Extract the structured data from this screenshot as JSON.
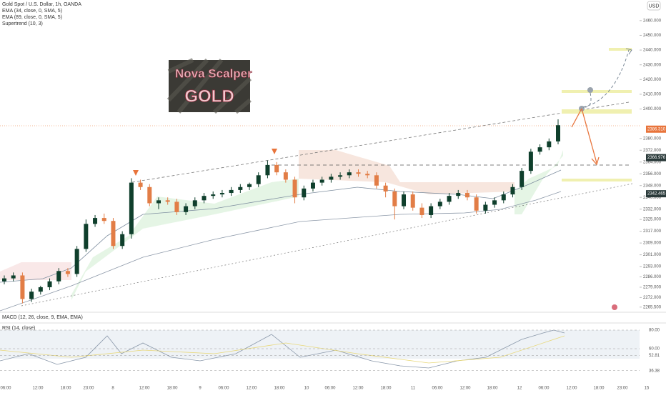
{
  "chart_data": {
    "type": "candlestick",
    "title": "Gold Spot / U.S. Dollar, 1h, OANDA",
    "indicators": [
      "EMA (34, close, 0, SMA, 5)",
      "EMA (89, close, 0, SMA, 5)",
      "Supertrend (10, 3)"
    ],
    "currency": "USD",
    "logo": {
      "line1": "Nova Scalper",
      "line2": "GOLD"
    },
    "up_color": "#0f3f2c",
    "down_color": "#e27d46",
    "open": [
      2283,
      2285,
      2287,
      2271,
      2276,
      2279,
      2283,
      2290,
      2288,
      2305,
      2322,
      2326,
      2324,
      2307,
      2315,
      2350,
      2347,
      2336,
      2338,
      2337,
      2330,
      2334,
      2338,
      2341,
      2342,
      2343,
      2345,
      2347,
      2349,
      2355,
      2362,
      2357,
      2352,
      2340,
      2346,
      2350,
      2352,
      2354,
      2355,
      2357,
      2356,
      2355,
      2348,
      2344,
      2334,
      2342,
      2333,
      2328,
      2334,
      2337,
      2341,
      2343,
      2340,
      2331,
      2335,
      2338,
      2342,
      2347,
      2358,
      2371,
      2374,
      2378
    ],
    "high": [
      2287,
      2289,
      2289,
      2278,
      2280,
      2285,
      2292,
      2292,
      2307,
      2325,
      2328,
      2329,
      2326,
      2317,
      2353,
      2352,
      2349,
      2340,
      2340,
      2339,
      2336,
      2340,
      2343,
      2344,
      2345,
      2347,
      2349,
      2350,
      2357,
      2365,
      2364,
      2359,
      2354,
      2348,
      2352,
      2354,
      2356,
      2357,
      2359,
      2359,
      2358,
      2357,
      2350,
      2346,
      2344,
      2344,
      2336,
      2336,
      2339,
      2343,
      2345,
      2345,
      2342,
      2337,
      2340,
      2344,
      2349,
      2360,
      2373,
      2376,
      2380,
      2393
    ],
    "low": [
      2281,
      2283,
      2268,
      2269,
      2274,
      2277,
      2281,
      2286,
      2286,
      2303,
      2320,
      2322,
      2305,
      2305,
      2312,
      2345,
      2334,
      2332,
      2335,
      2328,
      2328,
      2332,
      2336,
      2339,
      2340,
      2341,
      2343,
      2345,
      2347,
      2353,
      2355,
      2350,
      2336,
      2338,
      2344,
      2348,
      2350,
      2352,
      2353,
      2354,
      2353,
      2346,
      2340,
      2325,
      2332,
      2331,
      2326,
      2326,
      2332,
      2335,
      2339,
      2338,
      2329,
      2329,
      2333,
      2336,
      2340,
      2345,
      2356,
      2369,
      2372,
      2376
    ],
    "close": [
      2285,
      2287,
      2271,
      2276,
      2279,
      2283,
      2290,
      2288,
      2305,
      2322,
      2326,
      2324,
      2307,
      2315,
      2350,
      2347,
      2336,
      2338,
      2337,
      2330,
      2334,
      2338,
      2341,
      2342,
      2343,
      2345,
      2347,
      2349,
      2355,
      2362,
      2357,
      2352,
      2340,
      2346,
      2350,
      2352,
      2354,
      2355,
      2357,
      2356,
      2355,
      2348,
      2344,
      2334,
      2342,
      2333,
      2328,
      2334,
      2337,
      2341,
      2343,
      2340,
      2331,
      2335,
      2338,
      2342,
      2347,
      2358,
      2371,
      2374,
      2378,
      2389
    ],
    "ylim": [
      2262,
      2474
    ],
    "yticks": [
      {
        "value": 2265.5,
        "label": "2265.500"
      },
      {
        "value": 2272,
        "label": "2272.000"
      },
      {
        "value": 2279,
        "label": "2279.000"
      },
      {
        "value": 2286,
        "label": "2286.000"
      },
      {
        "value": 2293,
        "label": "2293.000"
      },
      {
        "value": 2301,
        "label": "2301.000"
      },
      {
        "value": 2309,
        "label": "2309.000"
      },
      {
        "value": 2317,
        "label": "2317.000"
      },
      {
        "value": 2325,
        "label": "2325.000"
      },
      {
        "value": 2332,
        "label": "2332.000"
      },
      {
        "value": 2340,
        "label": "2340.000"
      },
      {
        "value": 2348,
        "label": "2348.000"
      },
      {
        "value": 2356,
        "label": "2356.000"
      },
      {
        "value": 2364,
        "label": "2364.000"
      },
      {
        "value": 2372,
        "label": "2372.000"
      },
      {
        "value": 2380,
        "label": "2380.000"
      },
      {
        "value": 2400,
        "label": "2400.000"
      },
      {
        "value": 2410,
        "label": "2410.000"
      },
      {
        "value": 2420,
        "label": "2420.000"
      },
      {
        "value": 2430,
        "label": "2430.000"
      },
      {
        "value": 2440,
        "label": "2440.000"
      },
      {
        "value": 2450,
        "label": "2450.000"
      },
      {
        "value": 2460,
        "label": "2460.000"
      }
    ],
    "price_labels": [
      {
        "value": 2386.31,
        "label": "2386.310",
        "color": "#e8743b"
      },
      {
        "value": 2366.976,
        "label": "2366.976",
        "color": "#2a3a3a"
      },
      {
        "value": 2342.465,
        "label": "2342.465",
        "color": "#2a3a3a"
      }
    ],
    "time_labels": [
      "06:00",
      "12:00",
      "18:00",
      "23:00",
      "8",
      "12:00",
      "18:00",
      "9",
      "06:00",
      "12:00",
      "18:00",
      "10",
      "06:00",
      "12:00",
      "18:00",
      "11",
      "06:00",
      "12:00",
      "18:00",
      "12",
      "06:00",
      "12:00",
      "18:00",
      "23:00",
      "15"
    ],
    "macd_title": "MACD (12, 26, close, 9, EMA, EMA)",
    "rsi": {
      "title": "RSI (14, close)",
      "ylim": [
        27.7,
        87.7
      ],
      "yticks": [
        {
          "value": 80,
          "label": "80.00"
        },
        {
          "value": 60,
          "label": "60.00"
        },
        {
          "value": 52.81,
          "label": "52.81"
        },
        {
          "value": 36.38,
          "label": "36.38"
        }
      ]
    }
  }
}
